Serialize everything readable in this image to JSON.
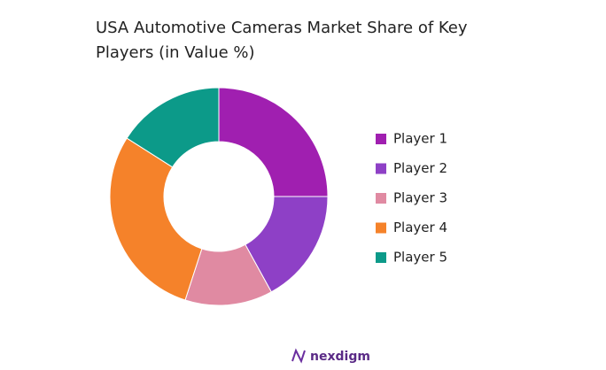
{
  "chart_data": {
    "type": "donut",
    "title": "USA Automotive Cameras Market Share of Key Players (in Value %)",
    "categories": [
      "Player 1",
      "Player 2",
      "Player 3",
      "Player 4",
      "Player 5"
    ],
    "values": [
      25,
      17,
      13,
      29,
      16
    ],
    "colors": [
      "#a01fb0",
      "#8e40c6",
      "#e08aa2",
      "#f5822a",
      "#0c9a89"
    ],
    "legend": "right"
  },
  "footer": {
    "brand": "nexdigm"
  }
}
